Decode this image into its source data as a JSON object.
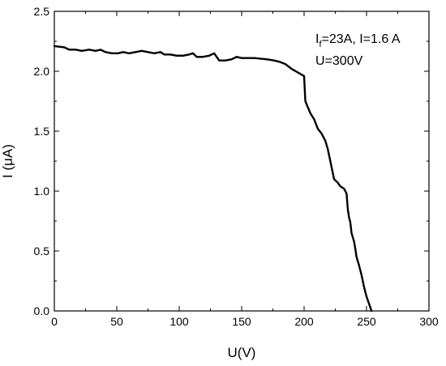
{
  "chart_data": {
    "type": "line",
    "xlabel": "U(V)",
    "ylabel": "I (μA)",
    "xlim": [
      0,
      300
    ],
    "ylim": [
      0,
      2.5
    ],
    "xticks": [
      0,
      50,
      100,
      150,
      200,
      250,
      300
    ],
    "xtick_labels": [
      "0",
      "50",
      "100",
      "150",
      "200",
      "250",
      "300"
    ],
    "yticks": [
      0.0,
      0.5,
      1.0,
      1.5,
      2.0,
      2.5
    ],
    "ytick_labels": [
      "0.0",
      "0.5",
      "1.0",
      "1.5",
      "2.0",
      "2.5"
    ],
    "grid": false,
    "annotations": {
      "current_prefix": "I",
      "current_subscript": "f",
      "current_rest": "=23A, I=1.6 A",
      "voltage": "U=300V"
    },
    "series": [
      {
        "x": [
          0,
          8,
          12,
          17,
          22,
          28,
          33,
          37,
          41,
          46,
          51,
          55,
          60,
          65,
          70,
          75,
          80,
          85,
          88,
          93,
          98,
          103,
          108,
          111,
          114,
          119,
          124,
          128,
          132,
          137,
          142,
          146,
          150,
          160,
          170,
          176,
          180,
          185,
          190,
          195,
          200,
          201,
          203,
          205,
          208,
          211,
          214,
          217,
          219,
          221,
          224,
          227,
          229,
          232,
          234,
          235,
          236,
          237,
          238,
          240,
          241,
          242,
          244,
          246,
          248,
          250,
          252,
          254
        ],
        "y": [
          2.21,
          2.2,
          2.18,
          2.18,
          2.17,
          2.18,
          2.17,
          2.18,
          2.16,
          2.15,
          2.15,
          2.16,
          2.15,
          2.16,
          2.17,
          2.16,
          2.15,
          2.16,
          2.14,
          2.14,
          2.13,
          2.13,
          2.14,
          2.15,
          2.12,
          2.12,
          2.13,
          2.15,
          2.09,
          2.09,
          2.1,
          2.12,
          2.11,
          2.11,
          2.1,
          2.09,
          2.08,
          2.06,
          2.02,
          1.99,
          1.96,
          1.75,
          1.7,
          1.65,
          1.6,
          1.52,
          1.48,
          1.42,
          1.35,
          1.25,
          1.1,
          1.07,
          1.04,
          1.02,
          0.98,
          0.85,
          0.78,
          0.74,
          0.65,
          0.58,
          0.52,
          0.45,
          0.38,
          0.3,
          0.2,
          0.12,
          0.06,
          0.0
        ]
      }
    ]
  }
}
